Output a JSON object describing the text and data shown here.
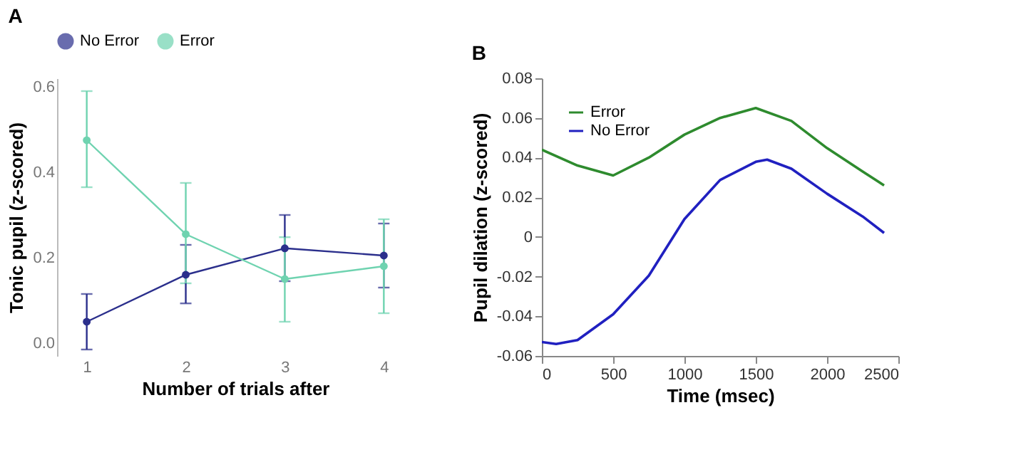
{
  "chart_data": [
    {
      "type": "line",
      "title": "A",
      "xlabel": "Number of trials after",
      "ylabel": "Tonic pupil (z-scored)",
      "categories": [
        "1",
        "2",
        "3",
        "4"
      ],
      "ylim": [
        -0.03,
        0.62
      ],
      "yticks": [
        {
          "value": 0,
          "label": "0.0"
        },
        0.2,
        0.4,
        0.6
      ],
      "grid": false,
      "legend": "top",
      "marker": "circle",
      "line_style": "solid",
      "series": [
        {
          "name": "No Error",
          "color": "#2b2f8c",
          "values": [
            0.05,
            0.16,
            0.222,
            0.205
          ],
          "errors": [
            [
              -0.015,
              0.115
            ],
            [
              0.093,
              0.23
            ],
            [
              0.145,
              0.3
            ],
            [
              0.13,
              0.28
            ]
          ]
        },
        {
          "name": "Error",
          "color": "#6fd3b0",
          "values": [
            0.475,
            0.255,
            0.15,
            0.18
          ],
          "errors": [
            [
              0.365,
              0.59
            ],
            [
              0.14,
              0.375
            ],
            [
              0.05,
              0.248
            ],
            [
              0.07,
              0.29
            ]
          ]
        }
      ]
    },
    {
      "type": "line",
      "title": "B",
      "xlabel": "Time (msec)",
      "ylabel": "Pupil dilation (z-scored)",
      "xlim": [
        0,
        2500
      ],
      "xticks": [
        0,
        500,
        1000,
        1500,
        2000,
        2500
      ],
      "ylim": [
        -0.06,
        0.08
      ],
      "yticks": [
        -0.06,
        -0.04,
        -0.02,
        0,
        0.02,
        0.04,
        0.06,
        0.08
      ],
      "grid": false,
      "legend": "top left",
      "marker": "none",
      "line_style": "solid",
      "series": [
        {
          "name": "Error",
          "color": "#2e8b2e",
          "x": [
            0,
            250,
            500,
            750,
            1000,
            1250,
            1500,
            1750,
            2000,
            2250,
            2400
          ],
          "values": [
            0.044,
            0.036,
            0.031,
            0.04,
            0.0516,
            0.06,
            0.065,
            0.0585,
            0.0448,
            0.033,
            0.026
          ]
        },
        {
          "name": "No Error",
          "color": "#2020c0",
          "x": [
            0,
            100,
            250,
            500,
            750,
            1000,
            1250,
            1500,
            1580,
            1750,
            2000,
            2250,
            2400
          ],
          "values": [
            -0.053,
            -0.054,
            -0.052,
            -0.039,
            -0.0195,
            0.009,
            0.0287,
            0.0379,
            0.039,
            0.0344,
            0.0218,
            0.0103,
            0.002
          ]
        }
      ]
    }
  ]
}
